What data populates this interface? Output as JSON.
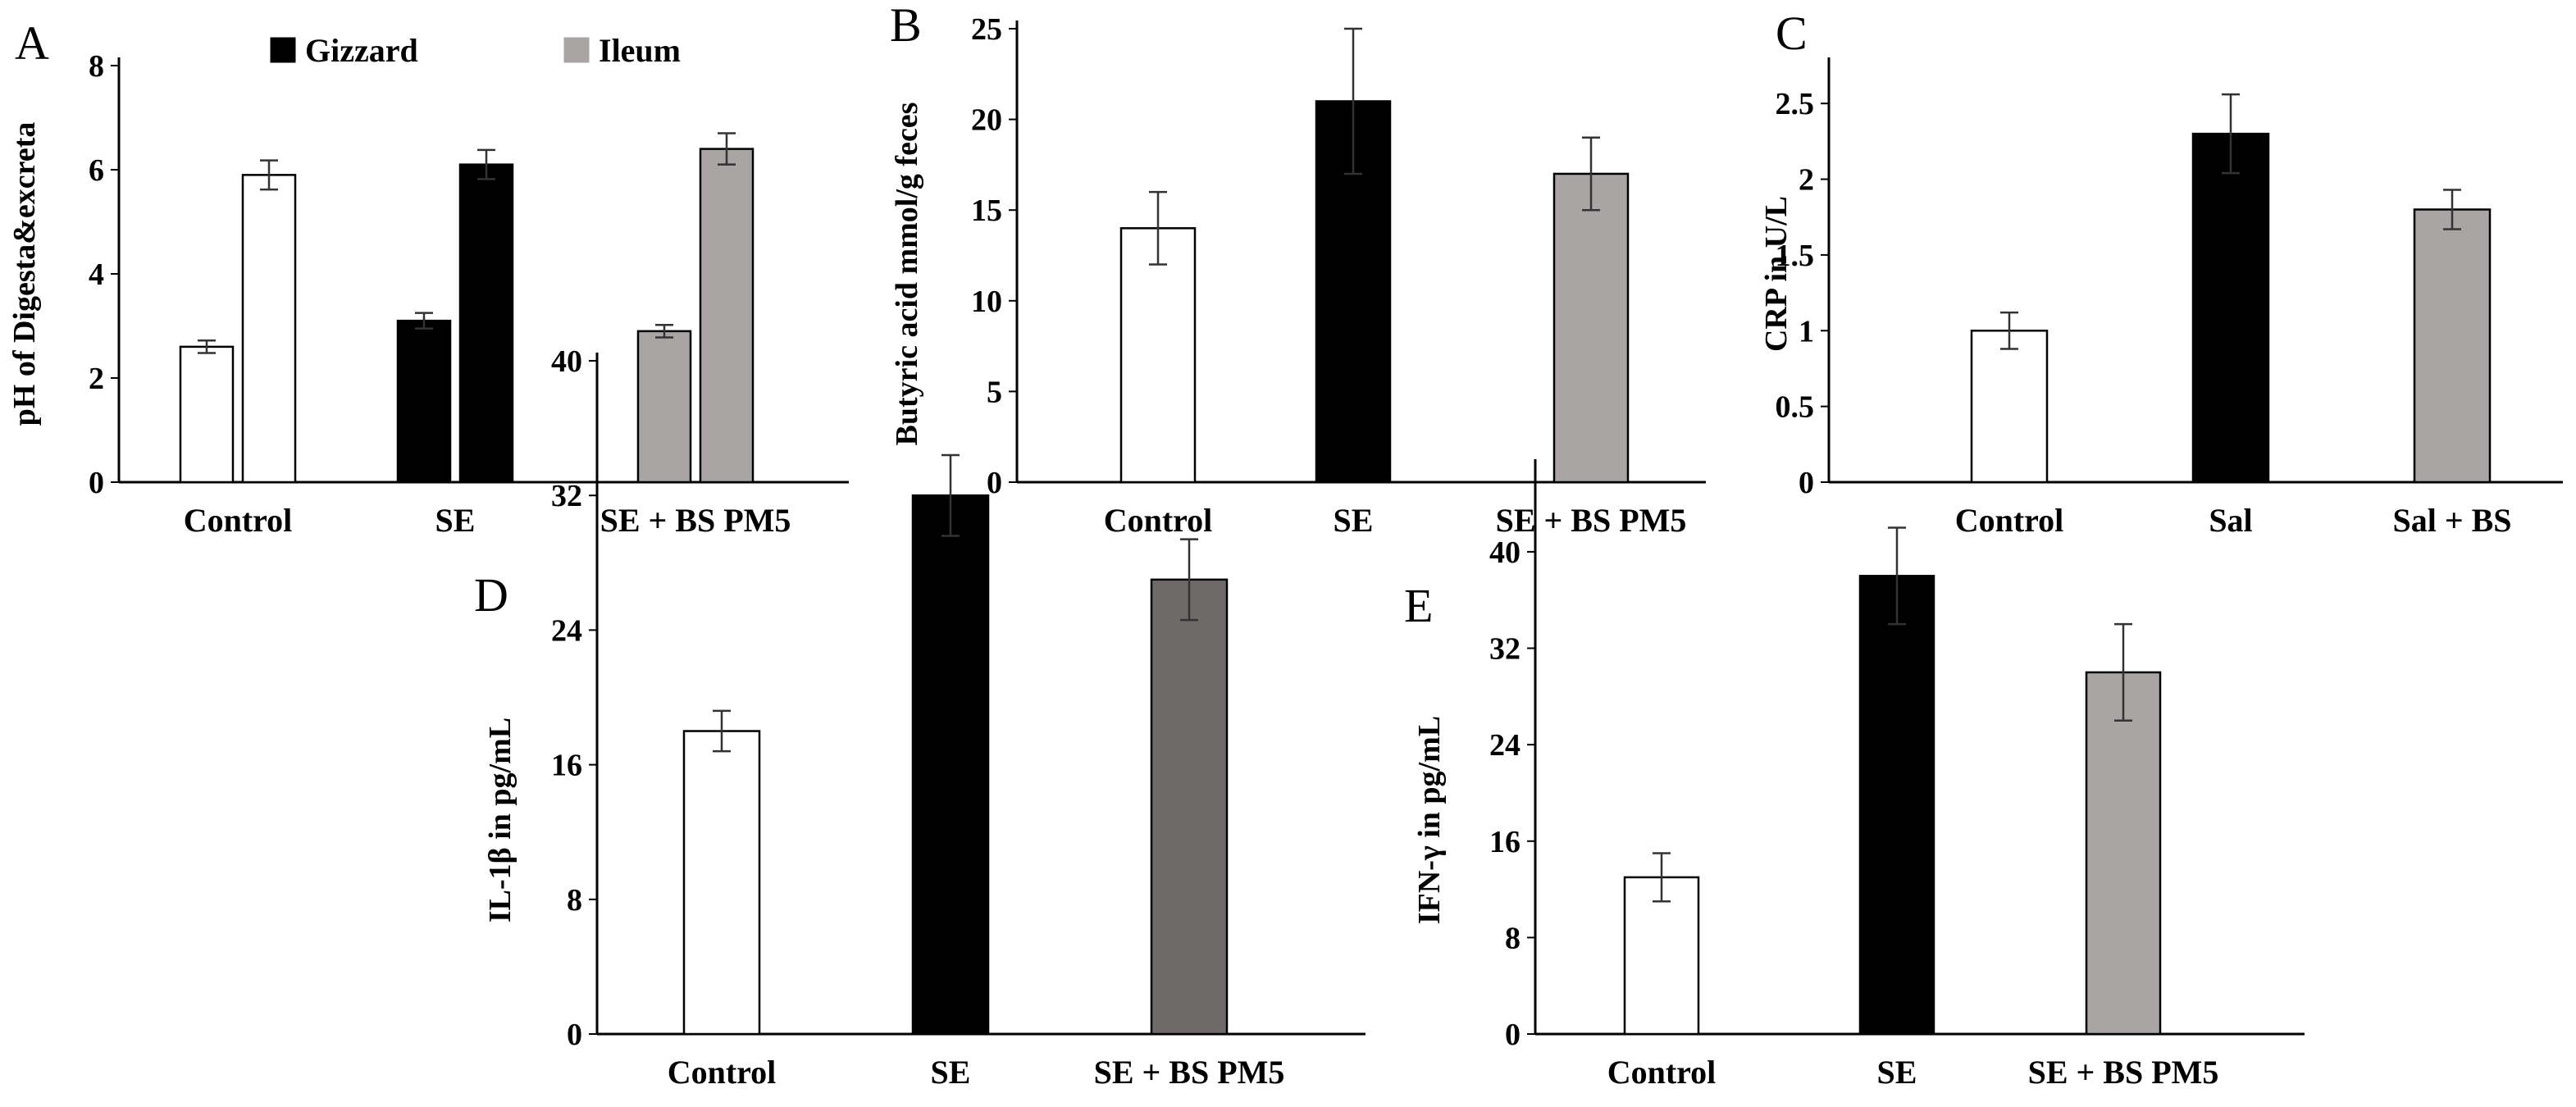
{
  "chart_data": [
    {
      "type": "bar",
      "panel": "A",
      "title": "",
      "xlabel": "",
      "ylabel": "pH of Digesta&excreta",
      "ylim": [
        0,
        8
      ],
      "yticks": [
        "0",
        "2",
        "4",
        "6",
        "8"
      ],
      "categories": [
        "Control",
        "SE",
        "SE + BS PM5"
      ],
      "legend": [
        {
          "name": "Gizzard",
          "color": "#000000"
        },
        {
          "name": "Ileum",
          "color": "#a9a5a5"
        }
      ],
      "series": [
        {
          "name": "Gizzard",
          "values": [
            2.6,
            3.1,
            2.9
          ],
          "errors": [
            0.12,
            0.15,
            0.12
          ],
          "colors": [
            "#ffffff",
            "#000000",
            "#a9a5a5"
          ]
        },
        {
          "name": "Ileum",
          "values": [
            5.9,
            6.1,
            6.4
          ],
          "errors": [
            0.28,
            0.28,
            0.3
          ],
          "colors": [
            "#ffffff",
            "#000000",
            "#a9a5a5"
          ]
        }
      ]
    },
    {
      "type": "bar",
      "panel": "B",
      "title": "",
      "xlabel": "",
      "ylabel": "Butyric acid mmol/g feces",
      "ylim": [
        0,
        25
      ],
      "yticks": [
        "0",
        "5",
        "10",
        "15",
        "20",
        "25"
      ],
      "categories": [
        "Control",
        "SE",
        "SE + BS PM5"
      ],
      "series": [
        {
          "name": "Butyric acid",
          "values": [
            14,
            21,
            17
          ],
          "errors": [
            2,
            4,
            2
          ],
          "colors": [
            "#ffffff",
            "#000000",
            "#a9a5a5"
          ]
        }
      ]
    },
    {
      "type": "bar",
      "panel": "C",
      "title": "",
      "xlabel": "",
      "ylabel": "CRP in U/L",
      "ylim": [
        0,
        2.75
      ],
      "yticks": [
        "0",
        "0.5",
        "1",
        "1.5",
        "2",
        "2.5"
      ],
      "categories": [
        "Control",
        "Sal",
        "Sal + BS"
      ],
      "series": [
        {
          "name": "CRP",
          "values": [
            1.0,
            2.3,
            1.8
          ],
          "errors": [
            0.12,
            0.26,
            0.13
          ],
          "colors": [
            "#ffffff",
            "#000000",
            "#a9a5a5"
          ]
        }
      ]
    },
    {
      "type": "bar",
      "panel": "D",
      "title": "",
      "xlabel": "",
      "ylabel": "IL-1β in pg/mL",
      "ylim": [
        0,
        40
      ],
      "yticks": [
        "0",
        "8",
        "16",
        "24",
        "32",
        "40"
      ],
      "categories": [
        "Control",
        "SE",
        "SE + BS PM5"
      ],
      "series": [
        {
          "name": "IL-1β",
          "values": [
            18,
            32,
            27
          ],
          "errors": [
            1.2,
            2.4,
            2.4
          ],
          "colors": [
            "#ffffff",
            "#000000",
            "#6e6a6a"
          ]
        }
      ]
    },
    {
      "type": "bar",
      "panel": "E",
      "title": "",
      "xlabel": "",
      "ylabel": "IFN-γ in pg/mL",
      "ylim": [
        0,
        47
      ],
      "yticks": [
        "0",
        "8",
        "16",
        "24",
        "32",
        "40"
      ],
      "categories": [
        "Control",
        "SE",
        "SE + BS PM5"
      ],
      "series": [
        {
          "name": "IFN-γ",
          "values": [
            13,
            38,
            30
          ],
          "errors": [
            2,
            4,
            4
          ],
          "colors": [
            "#ffffff",
            "#000000",
            "#a9a5a5"
          ]
        }
      ]
    }
  ]
}
